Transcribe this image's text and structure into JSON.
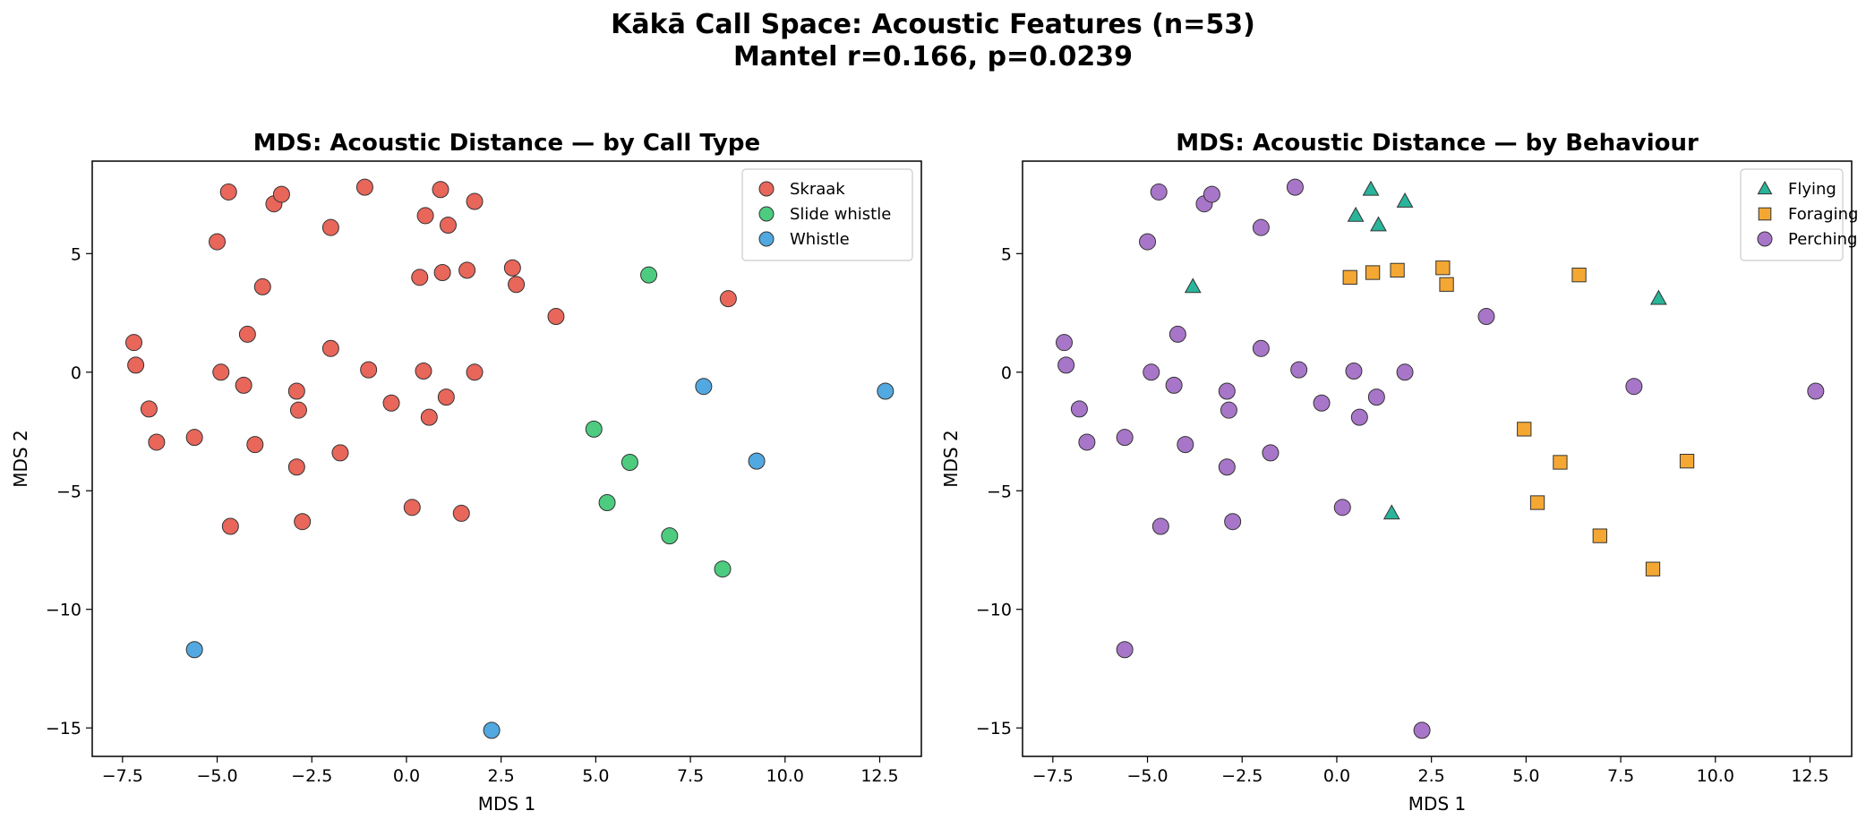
{
  "suptitle_line1": "Kākā Call Space: Acoustic Features (n=53)",
  "suptitle_line2": "Mantel r=0.166, p=0.0239",
  "chart_data": [
    {
      "type": "scatter",
      "title": "MDS: Acoustic Distance — by Call Type",
      "xlabel": "MDS 1",
      "ylabel": "MDS 2",
      "xlim": [
        -8.3,
        13.6
      ],
      "ylim": [
        -16.2,
        8.9
      ],
      "xticks": [
        "−7.5",
        "−5.0",
        "−2.5",
        "0.0",
        "2.5",
        "5.0",
        "7.5",
        "10.0",
        "12.5"
      ],
      "yticks": [
        "−15",
        "−10",
        "−5",
        "0",
        "5"
      ],
      "grid": false,
      "legend_position": "top-right",
      "series": [
        {
          "name": "Skraak",
          "color": "#e8665a",
          "marker": "circle",
          "points": [
            [
              -4.7,
              7.6
            ],
            [
              -3.5,
              7.1
            ],
            [
              -3.3,
              7.5
            ],
            [
              -1.1,
              7.8
            ],
            [
              0.9,
              7.7
            ],
            [
              1.8,
              7.2
            ],
            [
              0.5,
              6.6
            ],
            [
              1.1,
              6.2
            ],
            [
              -2.0,
              6.1
            ],
            [
              -5.0,
              5.5
            ],
            [
              0.35,
              4.0
            ],
            [
              0.95,
              4.2
            ],
            [
              1.6,
              4.3
            ],
            [
              2.8,
              4.4
            ],
            [
              2.9,
              3.7
            ],
            [
              -3.8,
              3.6
            ],
            [
              3.95,
              2.35
            ],
            [
              -7.2,
              1.25
            ],
            [
              -7.15,
              0.3
            ],
            [
              -4.2,
              1.6
            ],
            [
              -2.0,
              1.0
            ],
            [
              -4.9,
              0.0
            ],
            [
              -1.0,
              0.1
            ],
            [
              0.45,
              0.05
            ],
            [
              1.8,
              0.0
            ],
            [
              -4.3,
              -0.55
            ],
            [
              -2.9,
              -0.8
            ],
            [
              1.05,
              -1.05
            ],
            [
              -0.4,
              -1.3
            ],
            [
              -6.8,
              -1.55
            ],
            [
              -2.85,
              -1.6
            ],
            [
              0.6,
              -1.9
            ],
            [
              -6.6,
              -2.95
            ],
            [
              -5.6,
              -2.75
            ],
            [
              -4.0,
              -3.05
            ],
            [
              -1.75,
              -3.4
            ],
            [
              -2.9,
              -4.0
            ],
            [
              0.15,
              -5.7
            ],
            [
              1.45,
              -5.95
            ],
            [
              -4.65,
              -6.5
            ],
            [
              -2.75,
              -6.3
            ],
            [
              8.5,
              3.1
            ]
          ]
        },
        {
          "name": "Slide whistle",
          "color": "#4dcc80",
          "marker": "circle",
          "points": [
            [
              6.4,
              4.1
            ],
            [
              4.95,
              -2.4
            ],
            [
              5.9,
              -3.8
            ],
            [
              5.3,
              -5.5
            ],
            [
              6.95,
              -6.9
            ],
            [
              8.35,
              -8.3
            ]
          ]
        },
        {
          "name": "Whistle",
          "color": "#52a8e0",
          "marker": "circle",
          "points": [
            [
              7.85,
              -0.6
            ],
            [
              12.65,
              -0.8
            ],
            [
              9.25,
              -3.75
            ],
            [
              -5.6,
              -11.7
            ],
            [
              2.25,
              -15.1
            ]
          ]
        }
      ]
    },
    {
      "type": "scatter",
      "title": "MDS: Acoustic Distance — by Behaviour",
      "xlabel": "MDS 1",
      "ylabel": "MDS 2",
      "xlim": [
        -8.3,
        13.6
      ],
      "ylim": [
        -16.2,
        8.9
      ],
      "xticks": [
        "−7.5",
        "−5.0",
        "−2.5",
        "0.0",
        "2.5",
        "5.0",
        "7.5",
        "10.0",
        "12.5"
      ],
      "yticks": [
        "−15",
        "−10",
        "−5",
        "0",
        "5"
      ],
      "grid": false,
      "legend_position": "top-right",
      "series": [
        {
          "name": "Flying",
          "color": "#2ab49a",
          "marker": "triangle",
          "points": [
            [
              0.9,
              7.7
            ],
            [
              1.8,
              7.2
            ],
            [
              0.5,
              6.6
            ],
            [
              1.1,
              6.2
            ],
            [
              -3.8,
              3.6
            ],
            [
              8.5,
              3.1
            ],
            [
              1.45,
              -5.95
            ]
          ]
        },
        {
          "name": "Foraging",
          "color": "#f4a833",
          "marker": "square",
          "points": [
            [
              0.35,
              4.0
            ],
            [
              0.95,
              4.2
            ],
            [
              1.6,
              4.3
            ],
            [
              2.8,
              4.4
            ],
            [
              2.9,
              3.7
            ],
            [
              6.4,
              4.1
            ],
            [
              4.95,
              -2.4
            ],
            [
              5.9,
              -3.8
            ],
            [
              9.25,
              -3.75
            ],
            [
              5.3,
              -5.5
            ],
            [
              6.95,
              -6.9
            ],
            [
              8.35,
              -8.3
            ]
          ]
        },
        {
          "name": "Perching",
          "color": "#a876c8",
          "marker": "circle",
          "points": [
            [
              -4.7,
              7.6
            ],
            [
              -3.5,
              7.1
            ],
            [
              -3.3,
              7.5
            ],
            [
              -1.1,
              7.8
            ],
            [
              -2.0,
              6.1
            ],
            [
              -5.0,
              5.5
            ],
            [
              3.95,
              2.35
            ],
            [
              -7.2,
              1.25
            ],
            [
              -7.15,
              0.3
            ],
            [
              -4.2,
              1.6
            ],
            [
              -2.0,
              1.0
            ],
            [
              -4.9,
              0.0
            ],
            [
              -1.0,
              0.1
            ],
            [
              0.45,
              0.05
            ],
            [
              1.8,
              0.0
            ],
            [
              -4.3,
              -0.55
            ],
            [
              -2.9,
              -0.8
            ],
            [
              1.05,
              -1.05
            ],
            [
              -0.4,
              -1.3
            ],
            [
              -6.8,
              -1.55
            ],
            [
              -2.85,
              -1.6
            ],
            [
              0.6,
              -1.9
            ],
            [
              -6.6,
              -2.95
            ],
            [
              -5.6,
              -2.75
            ],
            [
              -4.0,
              -3.05
            ],
            [
              -1.75,
              -3.4
            ],
            [
              -2.9,
              -4.0
            ],
            [
              0.15,
              -5.7
            ],
            [
              -4.65,
              -6.5
            ],
            [
              -2.75,
              -6.3
            ],
            [
              7.85,
              -0.6
            ],
            [
              12.65,
              -0.8
            ],
            [
              -5.6,
              -11.7
            ],
            [
              2.25,
              -15.1
            ]
          ]
        }
      ]
    }
  ]
}
